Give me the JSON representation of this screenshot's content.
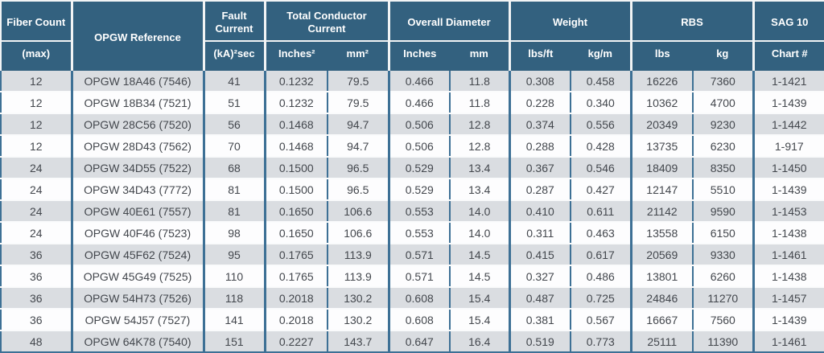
{
  "colors": {
    "header_bg": "#33617f",
    "header_text": "#ffffff",
    "grid_blue": "#3d7095",
    "header_separator_white": "#f2f4f5",
    "row_alt_bg": "#dadde1",
    "row_bg": "#fdfdfe",
    "body_text": "#43474d"
  },
  "table": {
    "header": {
      "fiber_count": {
        "top": "Fiber Count",
        "sub": "(max)"
      },
      "opgw_reference": "OPGW Reference",
      "fault_current": {
        "top": "Fault Current",
        "sub": "(kA)²sec"
      },
      "total_conductor_current": {
        "top": "Total Conductor Current",
        "subs": [
          "Inches²",
          "mm²"
        ]
      },
      "overall_diameter": {
        "top": "Overall Diameter",
        "subs": [
          "Inches",
          "mm"
        ]
      },
      "weight": {
        "top": "Weight",
        "subs": [
          "lbs/ft",
          "kg/m"
        ]
      },
      "rbs": {
        "top": "RBS",
        "subs": [
          "lbs",
          "kg"
        ]
      },
      "sag10": {
        "top": "SAG 10",
        "sub": "Chart #"
      }
    },
    "rows": [
      [
        "12",
        "OPGW 18A46 (7546)",
        "41",
        "0.1232",
        "79.5",
        "0.466",
        "11.8",
        "0.308",
        "0.458",
        "16226",
        "7360",
        "1-1421"
      ],
      [
        "12",
        "OPGW 18B34 (7521)",
        "51",
        "0.1232",
        "79.5",
        "0.466",
        "11.8",
        "0.228",
        "0.340",
        "10362",
        "4700",
        "1-1439"
      ],
      [
        "12",
        "OPGW 28C56 (7520)",
        "56",
        "0.1468",
        "94.7",
        "0.506",
        "12.8",
        "0.374",
        "0.556",
        "20349",
        "9230",
        "1-1442"
      ],
      [
        "12",
        "OPGW 28D43 (7562)",
        "70",
        "0.1468",
        "94.7",
        "0.506",
        "12.8",
        "0.288",
        "0.428",
        "13735",
        "6230",
        "1-917"
      ],
      [
        "24",
        "OPGW 34D55 (7522)",
        "68",
        "0.1500",
        "96.5",
        "0.529",
        "13.4",
        "0.367",
        "0.546",
        "18409",
        "8350",
        "1-1450"
      ],
      [
        "24",
        "OPGW 34D43 (7772)",
        "81",
        "0.1500",
        "96.5",
        "0.529",
        "13.4",
        "0.287",
        "0.427",
        "12147",
        "5510",
        "1-1439"
      ],
      [
        "24",
        "OPGW 40E61 (7557)",
        "81",
        "0.1650",
        "106.6",
        "0.553",
        "14.0",
        "0.410",
        "0.611",
        "21142",
        "9590",
        "1-1453"
      ],
      [
        "24",
        "OPGW 40F46 (7523)",
        "98",
        "0.1650",
        "106.6",
        "0.553",
        "14.0",
        "0.311",
        "0.463",
        "13558",
        "6150",
        "1-1438"
      ],
      [
        "36",
        "OPGW 45F62 (7524)",
        "95",
        "0.1765",
        "113.9",
        "0.571",
        "14.5",
        "0.415",
        "0.617",
        "20569",
        "9330",
        "1-1461"
      ],
      [
        "36",
        "OPGW 45G49 (7525)",
        "110",
        "0.1765",
        "113.9",
        "0.571",
        "14.5",
        "0.327",
        "0.486",
        "13801",
        "6260",
        "1-1438"
      ],
      [
        "36",
        "OPGW 54H73 (7526)",
        "118",
        "0.2018",
        "130.2",
        "0.608",
        "15.4",
        "0.487",
        "0.725",
        "24846",
        "11270",
        "1-1457"
      ],
      [
        "36",
        "OPGW 54J57 (7527)",
        "141",
        "0.2018",
        "130.2",
        "0.608",
        "15.4",
        "0.381",
        "0.567",
        "16667",
        "7560",
        "1-1439"
      ],
      [
        "48",
        "OPGW 64K78 (7540)",
        "151",
        "0.2227",
        "143.7",
        "0.647",
        "16.4",
        "0.519",
        "0.773",
        "25111",
        "11390",
        "1-1461"
      ]
    ]
  }
}
